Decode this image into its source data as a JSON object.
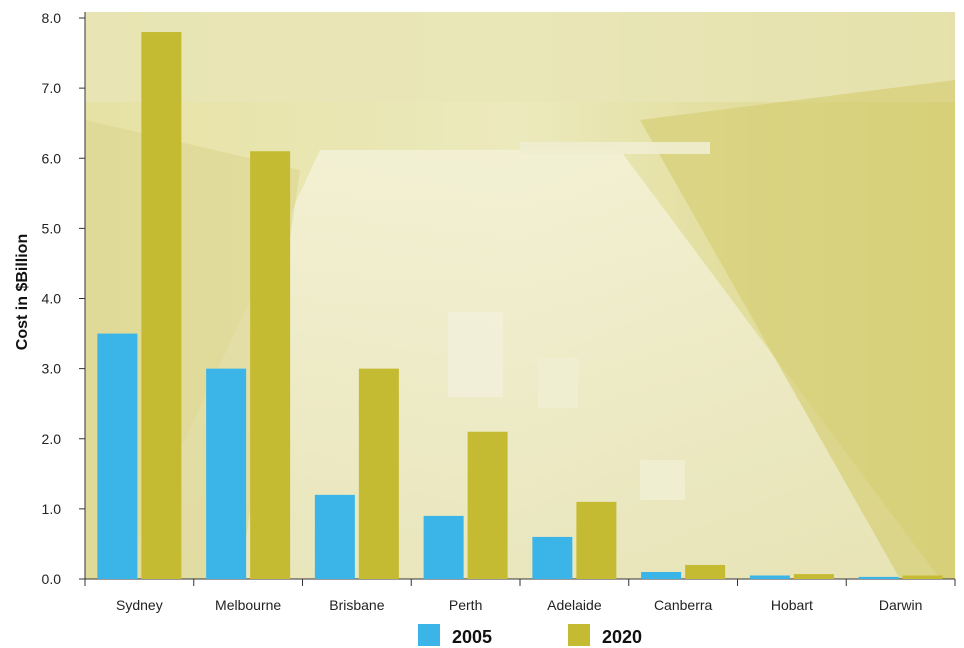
{
  "chart_data": {
    "type": "bar",
    "title": "",
    "xlabel": "",
    "ylabel": "Cost in $Billion",
    "ylim": [
      0,
      8
    ],
    "yticks": [
      "0.0",
      "1.0",
      "2.0",
      "3.0",
      "4.0",
      "5.0",
      "6.0",
      "7.0",
      "8.0"
    ],
    "categories": [
      "Sydney",
      "Melbourne",
      "Brisbane",
      "Perth",
      "Adelaide",
      "Canberra",
      "Hobart",
      "Darwin"
    ],
    "series": [
      {
        "name": "2005",
        "color": "#3bb5e8",
        "values": [
          3.5,
          3.0,
          1.2,
          0.9,
          0.6,
          0.1,
          0.05,
          0.03
        ]
      },
      {
        "name": "2020",
        "color": "#c5bb32",
        "values": [
          7.8,
          6.1,
          3.0,
          2.1,
          1.1,
          0.2,
          0.07,
          0.05
        ]
      }
    ],
    "grid": false,
    "legend_position": "bottom",
    "background": "traffic-photo-tinted-yellow"
  }
}
